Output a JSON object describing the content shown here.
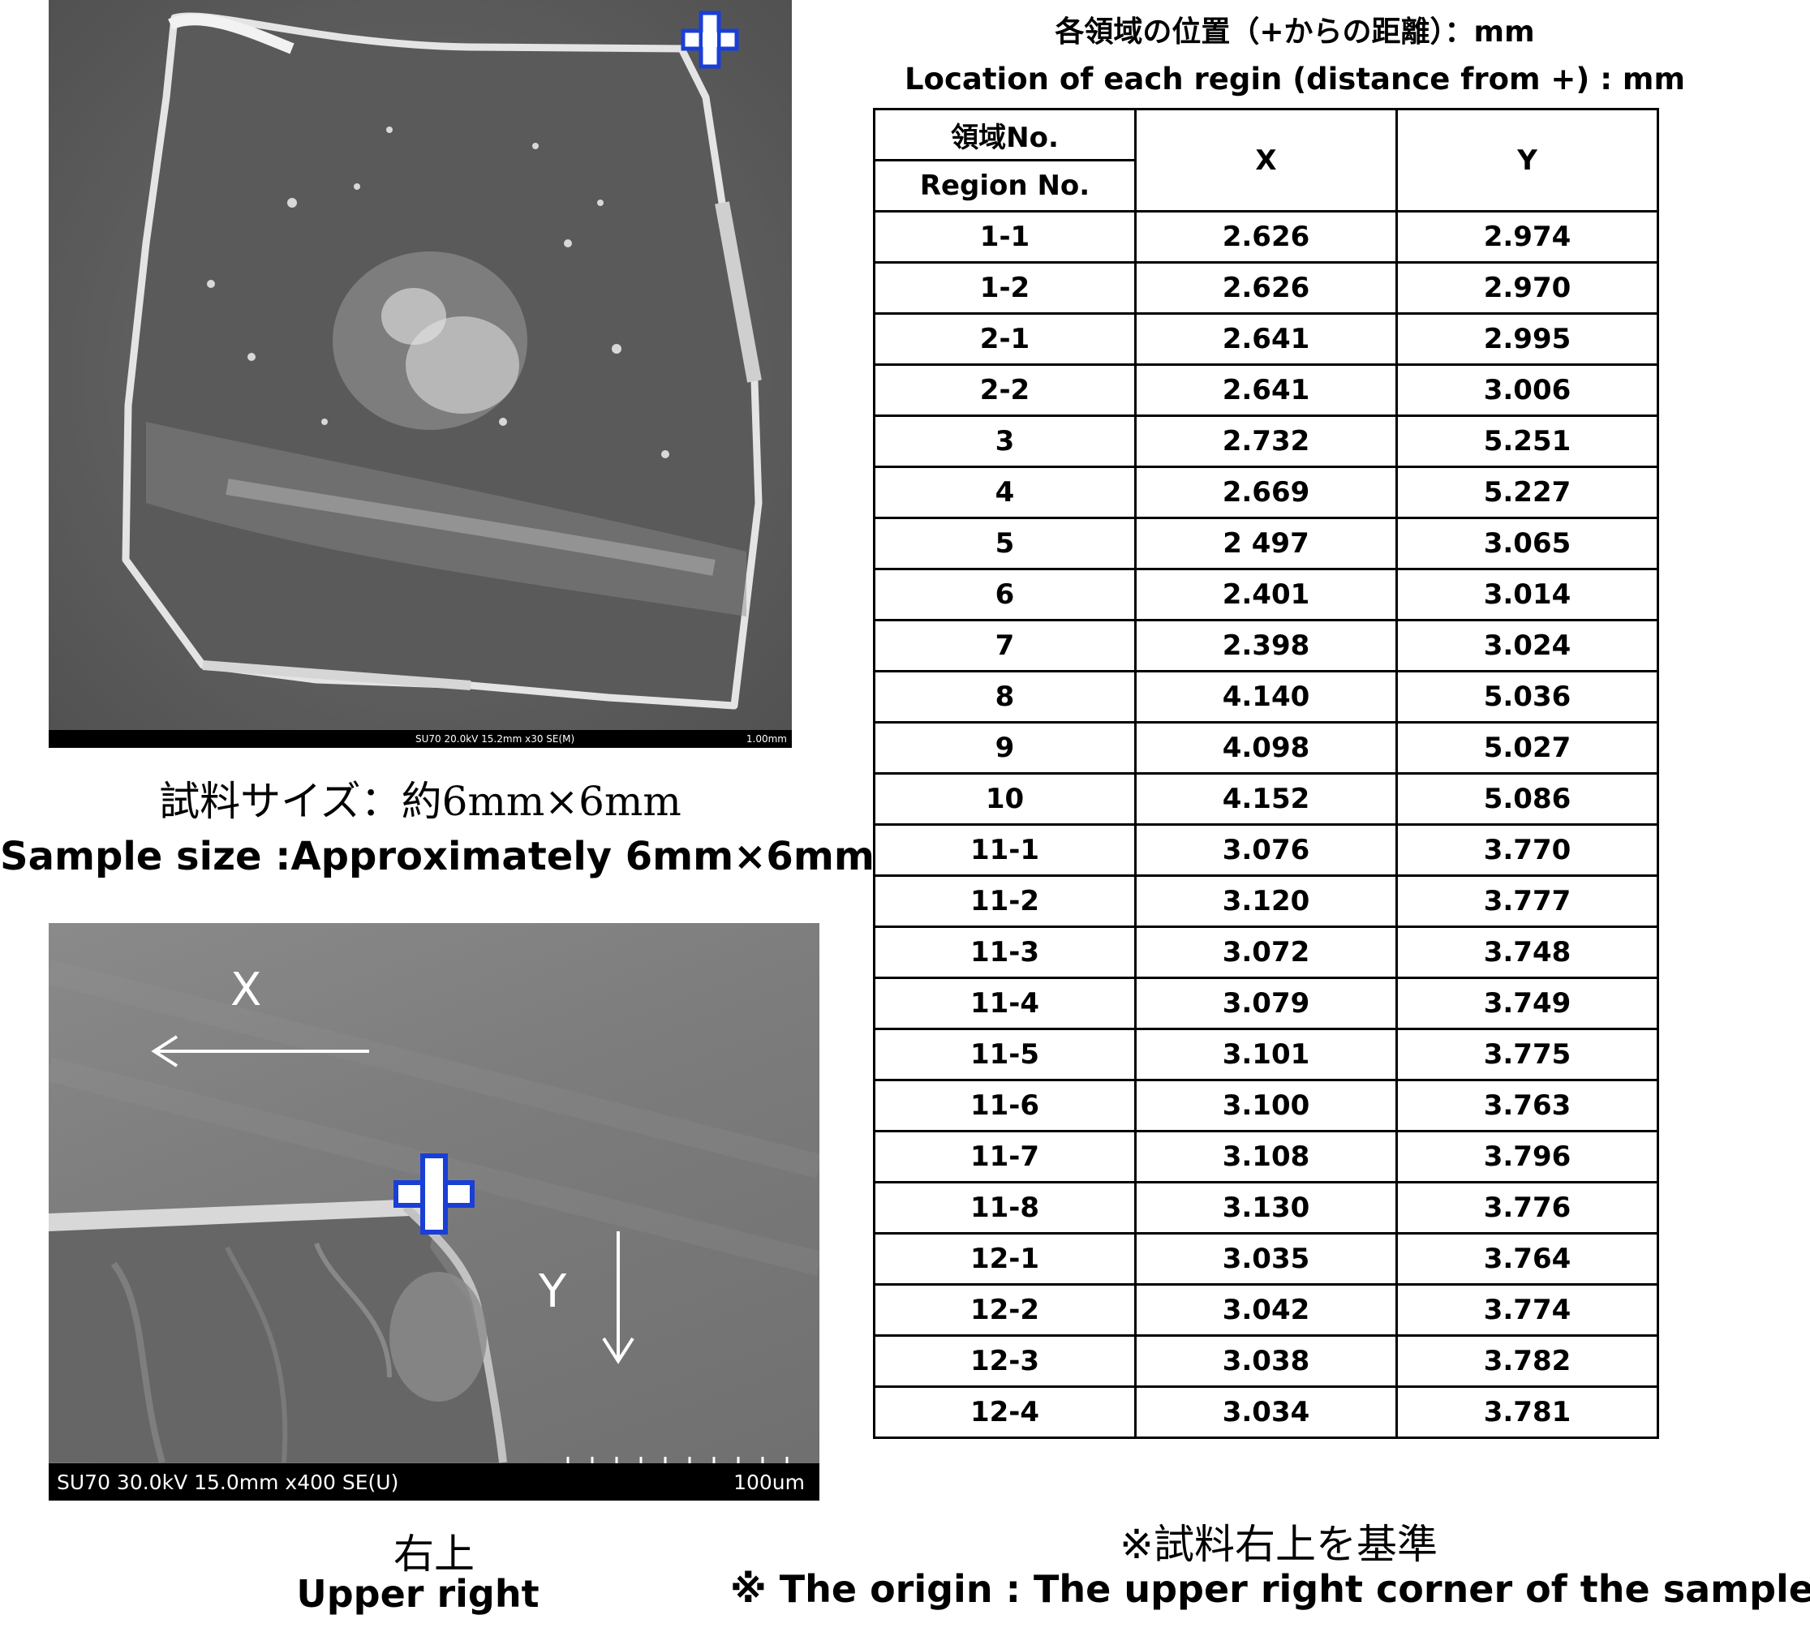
{
  "sem_top": {
    "info": "SU70 20.0kV 15.2mm x30 SE(M)",
    "scale_label": "1.00mm",
    "marker": "+"
  },
  "caption_size": {
    "jp": "試料サイズ：約6mm×6mm",
    "en": "Sample size :Approximately 6mm×6mm"
  },
  "sem_bottom": {
    "info": "SU70 30.0kV 15.0mm x400 SE(U)",
    "scale_label": "100um",
    "x_label": "X",
    "y_label": "Y",
    "marker": "+"
  },
  "caption_corner": {
    "jp": "右上",
    "en": "Upper right"
  },
  "table": {
    "title_jp": "各領域の位置（+からの距離）：mm",
    "title_en": "Location of each regin (distance from +) : mm",
    "header": {
      "region_jp": "領域No.",
      "region_en": "Region No.",
      "x": "X",
      "y": "Y"
    },
    "rows": [
      {
        "region": "1-1",
        "x": "2.626",
        "y": "2.974"
      },
      {
        "region": "1-2",
        "x": "2.626",
        "y": "2.970"
      },
      {
        "region": "2-1",
        "x": "2.641",
        "y": "2.995"
      },
      {
        "region": "2-2",
        "x": "2.641",
        "y": "3.006"
      },
      {
        "region": "3",
        "x": "2.732",
        "y": "5.251"
      },
      {
        "region": "4",
        "x": "2.669",
        "y": "5.227"
      },
      {
        "region": "5",
        "x": "2 497",
        "y": "3.065"
      },
      {
        "region": "6",
        "x": "2.401",
        "y": "3.014"
      },
      {
        "region": "7",
        "x": "2.398",
        "y": "3.024"
      },
      {
        "region": "8",
        "x": "4.140",
        "y": "5.036"
      },
      {
        "region": "9",
        "x": "4.098",
        "y": "5.027"
      },
      {
        "region": "10",
        "x": "4.152",
        "y": "5.086"
      },
      {
        "region": "11-1",
        "x": "3.076",
        "y": "3.770"
      },
      {
        "region": "11-2",
        "x": "3.120",
        "y": "3.777"
      },
      {
        "region": "11-3",
        "x": "3.072",
        "y": "3.748"
      },
      {
        "region": "11-4",
        "x": "3.079",
        "y": "3.749"
      },
      {
        "region": "11-5",
        "x": "3.101",
        "y": "3.775"
      },
      {
        "region": "11-6",
        "x": "3.100",
        "y": "3.763"
      },
      {
        "region": "11-7",
        "x": "3.108",
        "y": "3.796"
      },
      {
        "region": "11-8",
        "x": "3.130",
        "y": "3.776"
      },
      {
        "region": "12-1",
        "x": "3.035",
        "y": "3.764"
      },
      {
        "region": "12-2",
        "x": "3.042",
        "y": "3.774"
      },
      {
        "region": "12-3",
        "x": "3.038",
        "y": "3.782"
      },
      {
        "region": "12-4",
        "x": "3.034",
        "y": "3.781"
      }
    ]
  },
  "note": {
    "jp": "※試料右上を基準",
    "en": "※ The origin :  The upper right corner of the sample"
  },
  "colors": {
    "marker_blue": "#1a3fd6",
    "sem_background": "#606060",
    "sem_bar": "#000000"
  }
}
